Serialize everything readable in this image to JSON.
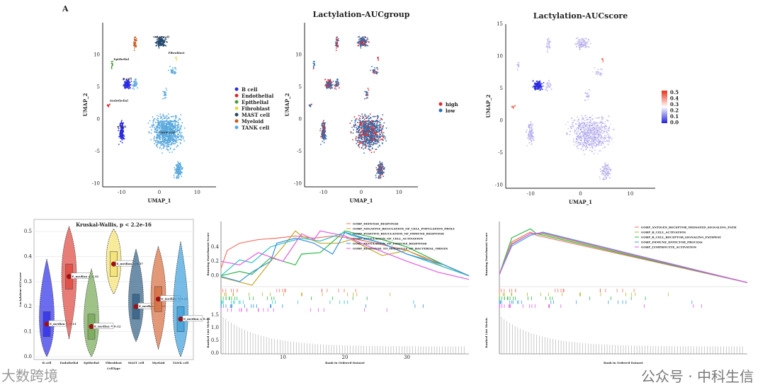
{
  "figure_label": "A",
  "watermarks": {
    "left": "大数跨境",
    "right": "公众号 · 中科生信"
  },
  "chart_data": [
    {
      "type": "scatter",
      "id": "umap-celltype",
      "title": "",
      "xlabel": "UMAP_1",
      "ylabel": "UMAP_2",
      "xlim": [
        -15,
        15
      ],
      "ylim": [
        -10.5,
        15
      ],
      "xticks": [
        "-10",
        "0",
        "10"
      ],
      "yticks": [
        "-10",
        "-5",
        "0",
        "5",
        "10"
      ],
      "legend": [
        "B cell",
        "Endothelial",
        "Epithelial",
        "Fibroblast",
        "MAST cell",
        "Myeloid",
        "TANK cell"
      ],
      "colors": [
        "#2b2be0",
        "#d62b2b",
        "#4a9a3a",
        "#e8d84a",
        "#23496e",
        "#c85a20",
        "#5aa9dd"
      ],
      "cluster_labels": [
        "B cell",
        "Endothelial",
        "Epithelial",
        "Fibroblast",
        "MAST cell",
        "Myeloid",
        "TANK cell"
      ],
      "clusters": [
        {
          "group": 0,
          "cx": -10,
          "cy": -2,
          "sx": 0.5,
          "sy": 1.2,
          "n": 160
        },
        {
          "group": 0,
          "cx": -8.5,
          "cy": 5.5,
          "sx": 0.8,
          "sy": 0.6,
          "n": 120
        },
        {
          "group": 1,
          "cx": -13.5,
          "cy": 2.1,
          "sx": 0.3,
          "sy": 0.2,
          "n": 8
        },
        {
          "group": 2,
          "cx": -12.5,
          "cy": 8.5,
          "sx": 0.2,
          "sy": 0.5,
          "n": 12
        },
        {
          "group": 3,
          "cx": 4.5,
          "cy": 9.5,
          "sx": 0.2,
          "sy": 0.3,
          "n": 5
        },
        {
          "group": 4,
          "cx": 0.5,
          "cy": 12,
          "sx": 1.0,
          "sy": 0.6,
          "n": 150
        },
        {
          "group": 5,
          "cx": -6.5,
          "cy": 12,
          "sx": 0.4,
          "sy": 0.8,
          "n": 40
        },
        {
          "group": 6,
          "cx": 2,
          "cy": -2,
          "sx": 3,
          "sy": 2,
          "n": 900
        },
        {
          "group": 6,
          "cx": 5,
          "cy": -8,
          "sx": 0.8,
          "sy": 1,
          "n": 140
        },
        {
          "group": 6,
          "cx": -6.5,
          "cy": 5.5,
          "sx": 0.5,
          "sy": 0.7,
          "n": 40
        },
        {
          "group": 6,
          "cx": 3.5,
          "cy": 7.5,
          "sx": 0.8,
          "sy": 0.5,
          "n": 30
        },
        {
          "group": 6,
          "cx": 1.5,
          "cy": 4,
          "sx": 0.4,
          "sy": 0.6,
          "n": 20
        }
      ]
    },
    {
      "type": "scatter",
      "id": "umap-aucgroup",
      "title": "Lactylation-AUCgroup",
      "xlabel": "UMAP_1",
      "ylabel": "UMAP_2",
      "xlim": [
        -15,
        15
      ],
      "ylim": [
        -10.5,
        15
      ],
      "xticks": [
        "-10",
        "0",
        "10"
      ],
      "yticks": [
        "-10",
        "-5",
        "0",
        "5",
        "10"
      ],
      "legend": [
        "high",
        "low"
      ],
      "colors": [
        "#e0282a",
        "#2f6fae"
      ],
      "high_fraction": 0.3
    },
    {
      "type": "scatter",
      "id": "umap-aucscore",
      "title": "Lactylation-AUCscore",
      "xlabel": "UMAP_1",
      "ylabel": "UMAP_2",
      "xlim": [
        -15,
        15
      ],
      "ylim": [
        -10.5,
        15
      ],
      "xticks": [
        "-10",
        "0",
        "10"
      ],
      "yticks": [
        "-10",
        "-5",
        "0",
        "5",
        "10",
        "15"
      ],
      "colorbar": [
        "0.5",
        "0.4",
        "0.3",
        "0.2",
        "0.1",
        "0.0"
      ],
      "colors": [
        "#2222dd",
        "#ffffff",
        "#e8301c"
      ]
    },
    {
      "type": "violin",
      "id": "violin-celltype",
      "title": "Kruskal-Wallis, p < 2.2e-16",
      "xlabel": "CellType",
      "ylabel": "Lactylation-AUCscore",
      "ylim": [
        0,
        0.52
      ],
      "yticks": [
        "0.0",
        "0.1",
        "0.2",
        "0.3",
        "0.4",
        "0.5"
      ],
      "categories": [
        "B cell",
        "Endothelial",
        "Epithelial",
        "Fibroblast",
        "MAST cell",
        "Myeloid",
        "TANK cell"
      ],
      "colors": [
        "#3b3bea",
        "#e0524a",
        "#7fae62",
        "#f4e47a",
        "#3d6a8e",
        "#d9764a",
        "#4aa6dd"
      ],
      "medians": [
        0.13,
        0.32,
        0.12,
        0.37,
        0.2,
        0.23,
        0.15
      ],
      "mins": [
        0.0,
        0.07,
        0.0,
        0.25,
        0.06,
        0.03,
        0.0
      ],
      "maxs": [
        0.39,
        0.52,
        0.35,
        0.51,
        0.43,
        0.44,
        0.46
      ],
      "median_labels": [
        "E_median = 0.13",
        "E_median = 0.32",
        "E_median = 0.12",
        "E_median = 0.37",
        "E_median = 0.20",
        "E_median = 0.23",
        "E_median = 0.15"
      ]
    },
    {
      "type": "line",
      "id": "gsea-1",
      "xlabel": "Rank in Ordered Dataset",
      "ylabel": "Running Enrichment Score",
      "ylabel2": "Ranked List Metric",
      "xlim": [
        0,
        40
      ],
      "ylim": [
        -0.15,
        0.75
      ],
      "xticks": [
        "10",
        "20",
        "30"
      ],
      "yticks": [
        "0.0",
        "0.2",
        "0.4"
      ],
      "metric_ticks": [
        "0.0",
        "0.5",
        "1.0",
        "1.5"
      ],
      "series": [
        {
          "name": "GOBP_DEFENSE_RESPONSE",
          "color": "#f0746a",
          "x": [
            0,
            1,
            3,
            6,
            9,
            12,
            15,
            18,
            21,
            25,
            30,
            36,
            40
          ],
          "y": [
            0.1,
            0.35,
            0.45,
            0.5,
            0.52,
            0.55,
            0.52,
            0.55,
            0.52,
            0.45,
            0.35,
            0.15,
            0.0
          ]
        },
        {
          "name": "GOBP_NEGATIVE_REGULATION_OF_CELL_POPULATION_PROLI",
          "color": "#c4a82a",
          "x": [
            0,
            5,
            8,
            10,
            12,
            13,
            16,
            19,
            21,
            26,
            30,
            36,
            40
          ],
          "y": [
            -0.02,
            -0.13,
            0.2,
            0.4,
            0.62,
            0.55,
            0.45,
            0.45,
            0.5,
            0.28,
            0.35,
            0.12,
            0.0
          ]
        },
        {
          "name": "GOBP_POSITIVE_REGULATION_OF_IMMUNE_RESPONSE",
          "color": "#2eb84a",
          "x": [
            0,
            3,
            5,
            8,
            12,
            13,
            16,
            20,
            21,
            26,
            30,
            36,
            40
          ],
          "y": [
            0.0,
            0.06,
            0.02,
            0.25,
            0.15,
            0.3,
            0.32,
            0.62,
            0.6,
            0.5,
            0.4,
            0.15,
            0.0
          ]
        },
        {
          "name": "GOBP_REGULATION_OF_CELL_ACTIVATION",
          "color": "#2ec4c4",
          "x": [
            0,
            3,
            5,
            8,
            10,
            13,
            16,
            20,
            21,
            26,
            30,
            36,
            40
          ],
          "y": [
            0.0,
            0.22,
            0.18,
            0.4,
            0.45,
            0.52,
            0.48,
            0.6,
            0.56,
            0.45,
            0.3,
            0.12,
            0.0
          ]
        },
        {
          "name": "GOBP_REGULATION_OF_IMMUNE_RESPONSE",
          "color": "#3a8fe0",
          "x": [
            0,
            3,
            5,
            8,
            9,
            12,
            15,
            18,
            20,
            26,
            30,
            36,
            40
          ],
          "y": [
            -0.01,
            -0.08,
            0.05,
            0.2,
            0.45,
            0.52,
            0.45,
            0.3,
            0.6,
            0.45,
            0.3,
            0.15,
            0.0
          ]
        },
        {
          "name": "GOBP_RESPONSE_TO_MOLECULE_OF_BACTERIAL_ORIGIN",
          "color": "#e25ce0",
          "x": [
            0,
            3,
            6,
            10,
            13,
            15,
            16,
            20,
            24,
            30,
            35,
            40
          ],
          "y": [
            0.2,
            0.15,
            0.32,
            0.2,
            0.58,
            0.5,
            0.62,
            0.55,
            0.4,
            0.2,
            0.05,
            -0.05
          ]
        }
      ]
    },
    {
      "type": "line",
      "id": "gsea-2",
      "xlabel": "Rank in Ordered Dataset",
      "ylabel": "Running Enrichment Score",
      "ylabel2": "Ranked List Metric",
      "xlim": [
        0,
        40
      ],
      "ylim": [
        -0.05,
        0.75
      ],
      "series": [
        {
          "name": "GOBP_ANTIGEN_RECEPTOR_MEDIATED_SIGNALING_PATH",
          "color": "#f0746a",
          "x": [
            0,
            2,
            5,
            6,
            40
          ],
          "y": [
            0.1,
            0.5,
            0.62,
            0.58,
            0.0
          ]
        },
        {
          "name": "GOBP_B_CELL_ACTIVATION",
          "color": "#b2b82a",
          "x": [
            0,
            2,
            5,
            7,
            40
          ],
          "y": [
            0.1,
            0.48,
            0.6,
            0.6,
            0.0
          ]
        },
        {
          "name": "GOBP_B_CELL_RECEPTOR_SIGNALING_PATHWAY",
          "color": "#2eb84a",
          "x": [
            0,
            2,
            5,
            6,
            40
          ],
          "y": [
            0.1,
            0.55,
            0.66,
            0.6,
            0.0
          ]
        },
        {
          "name": "GOBP_IMMUNE_EFFECTOR_PROCESS",
          "color": "#3a9ee0",
          "x": [
            0,
            2,
            5,
            7,
            40
          ],
          "y": [
            0.1,
            0.45,
            0.58,
            0.62,
            0.0
          ]
        },
        {
          "name": "GOBP_LYMPHOCYTE_ACTIVATION",
          "color": "#e25ce0",
          "x": [
            0,
            2,
            5,
            7,
            40
          ],
          "y": [
            0.1,
            0.47,
            0.6,
            0.61,
            0.0
          ]
        }
      ]
    }
  ]
}
